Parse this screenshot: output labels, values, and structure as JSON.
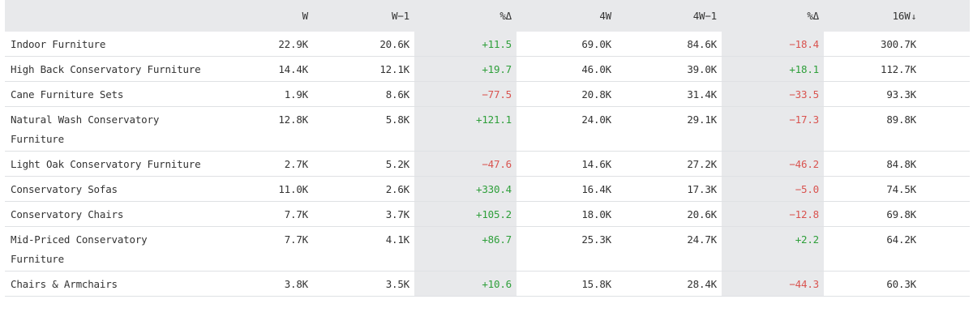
{
  "table": {
    "columns": {
      "name": "",
      "w": "W",
      "w1": "W−1",
      "pct1": "%Δ",
      "w4": "4W",
      "w4_1": "4W−1",
      "pct2": "%Δ",
      "w16": "16W",
      "w16_sort_icon": "↓"
    },
    "sorted_by": "16W",
    "sort_direction": "desc",
    "rows": [
      {
        "name": "Indoor Furniture",
        "w": "22.9K",
        "w1": "20.6K",
        "pct1": "+11.5",
        "w4": "69.0K",
        "w4_1": "84.6K",
        "pct2": "−18.4",
        "w16": "300.7K"
      },
      {
        "name": "High Back Conservatory Furniture",
        "w": "14.4K",
        "w1": "12.1K",
        "pct1": "+19.7",
        "w4": "46.0K",
        "w4_1": "39.0K",
        "pct2": "+18.1",
        "w16": "112.7K"
      },
      {
        "name": "Cane Furniture Sets",
        "w": "1.9K",
        "w1": "8.6K",
        "pct1": "−77.5",
        "w4": "20.8K",
        "w4_1": "31.4K",
        "pct2": "−33.5",
        "w16": "93.3K"
      },
      {
        "name": "Natural Wash Conservatory Furniture",
        "w": "12.8K",
        "w1": "5.8K",
        "pct1": "+121.1",
        "w4": "24.0K",
        "w4_1": "29.1K",
        "pct2": "−17.3",
        "w16": "89.8K"
      },
      {
        "name": "Light Oak Conservatory Furniture",
        "w": "2.7K",
        "w1": "5.2K",
        "pct1": "−47.6",
        "w4": "14.6K",
        "w4_1": "27.2K",
        "pct2": "−46.2",
        "w16": "84.8K"
      },
      {
        "name": "Conservatory Sofas",
        "w": "11.0K",
        "w1": "2.6K",
        "pct1": "+330.4",
        "w4": "16.4K",
        "w4_1": "17.3K",
        "pct2": "−5.0",
        "w16": "74.5K"
      },
      {
        "name": "Conservatory Chairs",
        "w": "7.7K",
        "w1": "3.7K",
        "pct1": "+105.2",
        "w4": "18.0K",
        "w4_1": "20.6K",
        "pct2": "−12.8",
        "w16": "69.8K"
      },
      {
        "name": "Mid-Priced Conservatory Furniture",
        "w": "7.7K",
        "w1": "4.1K",
        "pct1": "+86.7",
        "w4": "25.3K",
        "w4_1": "24.7K",
        "pct2": "+2.2",
        "w16": "64.2K"
      },
      {
        "name": "Chairs & Armchairs",
        "w": "3.8K",
        "w1": "3.5K",
        "pct1": "+10.6",
        "w4": "15.8K",
        "w4_1": "28.4K",
        "pct2": "−44.3",
        "w16": "60.3K"
      }
    ]
  },
  "colors": {
    "header_bg": "#e8e9eb",
    "shaded_column_bg": "#e8e9eb",
    "positive": "#2e9f3a",
    "negative": "#d9534f",
    "text": "#333333",
    "row_border": "#dfe1e4"
  }
}
